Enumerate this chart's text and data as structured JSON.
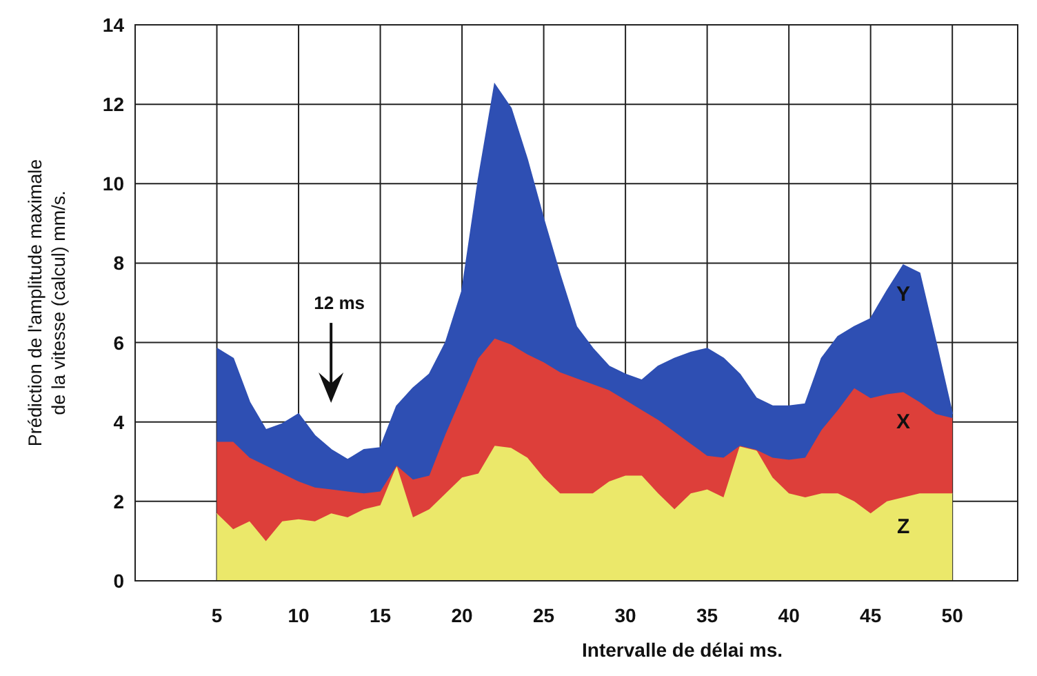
{
  "chart_data": {
    "type": "area",
    "stacked": true,
    "xlabel": "Intervalle de délai ms.",
    "ylabel": "Prédiction de l'amplitude maximale\nde la vitesse (calcul) mm/s.",
    "x": [
      5,
      6,
      7,
      8,
      9,
      10,
      11,
      12,
      13,
      14,
      15,
      16,
      17,
      18,
      19,
      20,
      21,
      22,
      23,
      24,
      25,
      26,
      27,
      28,
      29,
      30,
      31,
      32,
      33,
      34,
      35,
      36,
      37,
      38,
      39,
      40,
      41,
      42,
      43,
      44,
      45,
      46,
      47,
      48,
      49,
      50
    ],
    "series": [
      {
        "name": "Z",
        "color": "#ebe86a",
        "values": [
          1.7,
          1.3,
          1.5,
          1.0,
          1.5,
          1.55,
          1.5,
          1.7,
          1.6,
          1.8,
          1.9,
          2.9,
          1.6,
          1.8,
          2.2,
          2.6,
          2.7,
          3.4,
          3.35,
          3.1,
          2.6,
          2.2,
          2.2,
          2.2,
          2.5,
          2.65,
          2.65,
          2.2,
          1.8,
          2.2,
          2.3,
          2.1,
          3.4,
          3.3,
          2.6,
          2.2,
          2.1,
          2.2,
          2.2,
          2.0,
          1.7,
          2.0,
          2.1,
          2.2,
          2.2,
          2.2
        ]
      },
      {
        "name": "X",
        "color": "#dd3f3a",
        "values": [
          1.8,
          2.2,
          1.6,
          1.9,
          1.2,
          0.95,
          0.85,
          0.6,
          0.65,
          0.4,
          0.35,
          0,
          0.95,
          0.85,
          1.5,
          2.05,
          2.9,
          2.7,
          2.6,
          2.6,
          2.9,
          3.05,
          2.9,
          2.75,
          2.3,
          1.9,
          1.65,
          1.85,
          1.95,
          1.25,
          0.85,
          1.0,
          0,
          0,
          0.5,
          0.85,
          1.0,
          1.6,
          2.1,
          2.85,
          2.9,
          2.7,
          2.65,
          2.3,
          2.0,
          1.9
        ]
      },
      {
        "name": "Y",
        "color": "#2e4fb3",
        "values": [
          2.35,
          2.1,
          1.4,
          0.9,
          1.25,
          1.7,
          1.3,
          1.0,
          0.8,
          1.1,
          1.1,
          1.5,
          2.3,
          2.55,
          2.3,
          2.65,
          4.5,
          6.4,
          5.95,
          4.9,
          3.6,
          2.45,
          1.3,
          0.9,
          0.6,
          0.65,
          0.75,
          1.35,
          1.85,
          2.3,
          2.7,
          2.5,
          1.8,
          1.3,
          1.3,
          1.35,
          1.35,
          1.8,
          1.85,
          1.55,
          2.0,
          2.6,
          3.2,
          3.25,
          1.8,
          0.1
        ]
      }
    ],
    "xlim": [
      0,
      54
    ],
    "xticks": [
      5,
      10,
      15,
      20,
      25,
      30,
      35,
      40,
      45,
      50
    ],
    "ylim": [
      0,
      14
    ],
    "yticks": [
      0,
      2,
      4,
      6,
      8,
      10,
      12,
      14
    ],
    "grid": true,
    "annotations": [
      "12 ms"
    ]
  }
}
